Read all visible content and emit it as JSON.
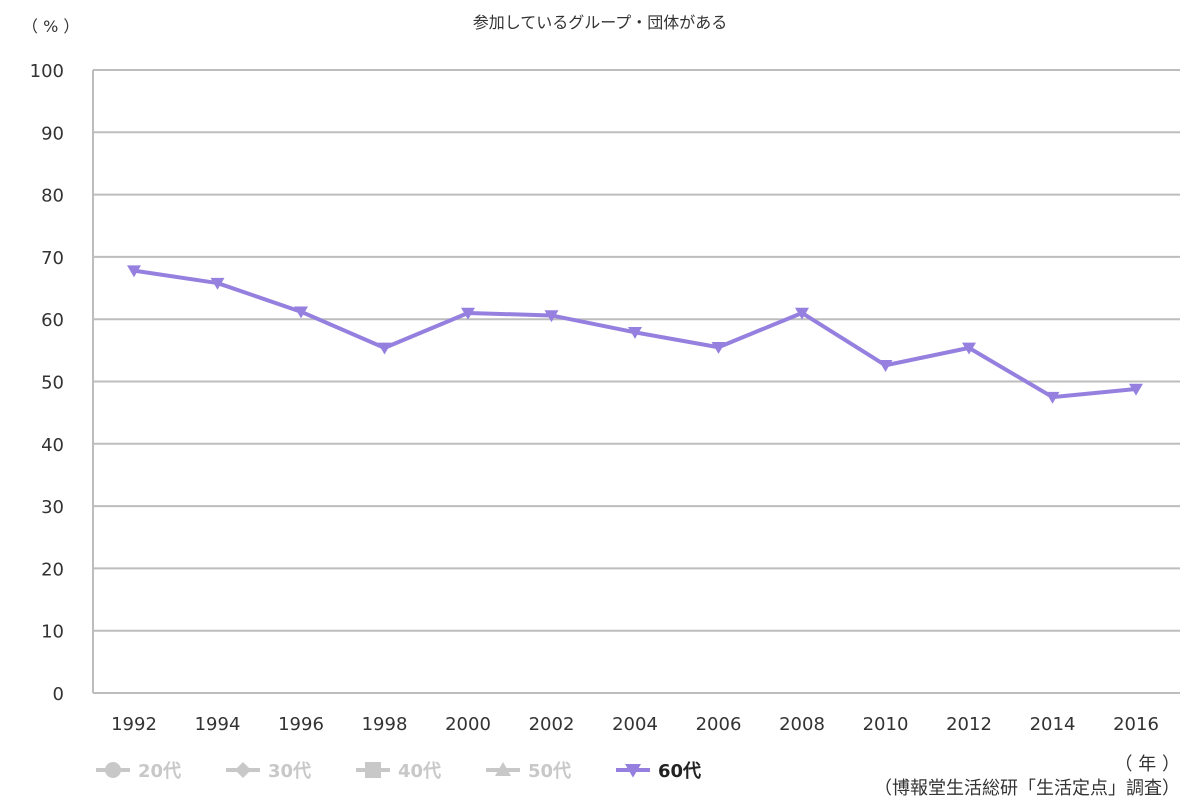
{
  "chart_data": {
    "type": "line",
    "title": "参加しているグループ・団体がある",
    "ylabel": "（ % ）",
    "xlabel": "（ 年 ）",
    "source": "（博報堂生活総研「生活定点」調査）",
    "ylim": [
      0,
      100
    ],
    "yticks": [
      0,
      10,
      20,
      30,
      40,
      50,
      60,
      70,
      80,
      90,
      100
    ],
    "grid": true,
    "legend_position": "bottom-left",
    "categories": [
      "1992",
      "1994",
      "1996",
      "1998",
      "2000",
      "2002",
      "2004",
      "2006",
      "2008",
      "2010",
      "2012",
      "2014",
      "2016"
    ],
    "legend": [
      {
        "name": "20代",
        "marker": "circle",
        "color": "#c8c8c8",
        "active": false
      },
      {
        "name": "30代",
        "marker": "diamond",
        "color": "#c8c8c8",
        "active": false
      },
      {
        "name": "40代",
        "marker": "square",
        "color": "#c8c8c8",
        "active": false
      },
      {
        "name": "50代",
        "marker": "triangle-up",
        "color": "#c8c8c8",
        "active": false
      },
      {
        "name": "60代",
        "marker": "triangle-down",
        "color": "#9580df",
        "active": true
      }
    ],
    "series": [
      {
        "name": "60代",
        "color": "#9580df",
        "marker": "triangle-down",
        "values": [
          67.8,
          65.8,
          61.2,
          55.4,
          61.0,
          60.6,
          57.9,
          55.5,
          61.0,
          52.6,
          55.4,
          47.5,
          48.8
        ]
      }
    ]
  }
}
